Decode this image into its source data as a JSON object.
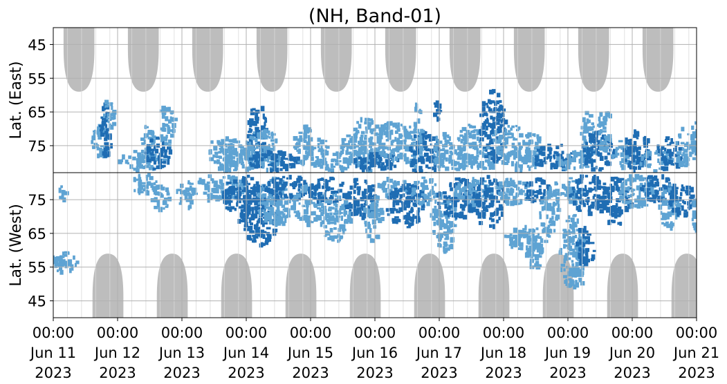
{
  "chart_data": {
    "type": "heatmap",
    "title": "(NH, Band-01)",
    "panels": [
      {
        "name": "east",
        "ylabel": "Lat. (East)",
        "yticks": [
          "45",
          "55",
          "65",
          "75"
        ],
        "ylim": [
          40,
          83
        ]
      },
      {
        "name": "west",
        "ylabel": "Lat. (West)",
        "yticks": [
          "75",
          "65",
          "55",
          "45"
        ],
        "ylim": [
          83,
          40
        ]
      }
    ],
    "xticks": [
      {
        "time": "00:00",
        "date": "Jun 11",
        "year": "2023"
      },
      {
        "time": "00:00",
        "date": "Jun 12",
        "year": "2023"
      },
      {
        "time": "00:00",
        "date": "Jun 13",
        "year": "2023"
      },
      {
        "time": "00:00",
        "date": "Jun 14",
        "year": "2023"
      },
      {
        "time": "00:00",
        "date": "Jun 15",
        "year": "2023"
      },
      {
        "time": "00:00",
        "date": "Jun 16",
        "year": "2023"
      },
      {
        "time": "00:00",
        "date": "Jun 17",
        "year": "2023"
      },
      {
        "time": "00:00",
        "date": "Jun 18",
        "year": "2023"
      },
      {
        "time": "00:00",
        "date": "Jun 19",
        "year": "2023"
      },
      {
        "time": "00:00",
        "date": "Jun 20",
        "year": "2023"
      },
      {
        "time": "00:00",
        "date": "Jun 21",
        "year": "2023"
      }
    ],
    "xlim": [
      "2023-06-11 00:00",
      "2023-06-21 00:00"
    ],
    "grid": true,
    "colors": {
      "strong": "#1f6db3",
      "weak": "#5ea3d3",
      "daylight_mask": "#bdbdbd",
      "grid": "#b0b0b0"
    },
    "east_blobs": [
      {
        "t": 0.73,
        "lat": 73,
        "dt": 0.15,
        "dlat": 5,
        "level": "weak"
      },
      {
        "t": 0.8,
        "lat": 70,
        "dt": 0.1,
        "dlat": 8,
        "level": "strong"
      },
      {
        "t": 0.85,
        "lat": 65,
        "dt": 0.08,
        "dlat": 5,
        "level": "weak"
      },
      {
        "t": 1.35,
        "lat": 79,
        "dt": 0.35,
        "dlat": 3,
        "level": "weak"
      },
      {
        "t": 1.45,
        "lat": 74,
        "dt": 0.1,
        "dlat": 6,
        "level": "weak"
      },
      {
        "t": 1.6,
        "lat": 77,
        "dt": 0.2,
        "dlat": 5,
        "level": "strong"
      },
      {
        "t": 1.75,
        "lat": 68,
        "dt": 0.12,
        "dlat": 7,
        "level": "weak"
      },
      {
        "t": 2.65,
        "lat": 77,
        "dt": 0.3,
        "dlat": 5,
        "level": "weak"
      },
      {
        "t": 2.85,
        "lat": 79,
        "dt": 0.35,
        "dlat": 3,
        "level": "weak"
      },
      {
        "t": 3.15,
        "lat": 71,
        "dt": 0.15,
        "dlat": 9,
        "level": "strong"
      },
      {
        "t": 3.25,
        "lat": 76,
        "dt": 0.3,
        "dlat": 6,
        "level": "weak"
      },
      {
        "t": 3.4,
        "lat": 79,
        "dt": 0.4,
        "dlat": 3,
        "level": "strong"
      },
      {
        "t": 3.85,
        "lat": 74,
        "dt": 0.15,
        "dlat": 6,
        "level": "weak"
      },
      {
        "t": 4.05,
        "lat": 76,
        "dt": 0.2,
        "dlat": 4,
        "level": "weak"
      },
      {
        "t": 4.35,
        "lat": 79,
        "dt": 0.3,
        "dlat": 3,
        "level": "weak"
      },
      {
        "t": 4.6,
        "lat": 75,
        "dt": 0.15,
        "dlat": 5,
        "level": "weak"
      },
      {
        "t": 4.85,
        "lat": 74,
        "dt": 0.25,
        "dlat": 8,
        "level": "weak"
      },
      {
        "t": 5.0,
        "lat": 79,
        "dt": 0.35,
        "dlat": 3,
        "level": "strong"
      },
      {
        "t": 5.25,
        "lat": 73,
        "dt": 0.25,
        "dlat": 6,
        "level": "weak"
      },
      {
        "t": 5.55,
        "lat": 75,
        "dt": 0.2,
        "dlat": 6,
        "level": "weak"
      },
      {
        "t": 5.75,
        "lat": 77,
        "dt": 0.25,
        "dlat": 7,
        "level": "strong"
      },
      {
        "t": 5.65,
        "lat": 68,
        "dt": 0.06,
        "dlat": 7,
        "level": "weak"
      },
      {
        "t": 5.95,
        "lat": 64,
        "dt": 0.05,
        "dlat": 4,
        "level": "strong"
      },
      {
        "t": 6.05,
        "lat": 76,
        "dt": 0.15,
        "dlat": 6,
        "level": "weak"
      },
      {
        "t": 6.25,
        "lat": 79,
        "dt": 0.35,
        "dlat": 3,
        "level": "weak"
      },
      {
        "t": 6.45,
        "lat": 74,
        "dt": 0.18,
        "dlat": 6,
        "level": "weak"
      },
      {
        "t": 6.7,
        "lat": 77,
        "dt": 0.18,
        "dlat": 5,
        "level": "weak"
      },
      {
        "t": 6.8,
        "lat": 69,
        "dt": 0.2,
        "dlat": 11,
        "level": "strong"
      },
      {
        "t": 7.05,
        "lat": 73,
        "dt": 0.25,
        "dlat": 5,
        "level": "weak"
      },
      {
        "t": 7.25,
        "lat": 79,
        "dt": 0.3,
        "dlat": 3,
        "level": "weak"
      },
      {
        "t": 7.4,
        "lat": 75,
        "dt": 0.2,
        "dlat": 5,
        "level": "weak"
      },
      {
        "t": 7.75,
        "lat": 78,
        "dt": 0.3,
        "dlat": 4,
        "level": "strong"
      },
      {
        "t": 8.05,
        "lat": 79,
        "dt": 0.3,
        "dlat": 3,
        "level": "weak"
      },
      {
        "t": 8.3,
        "lat": 71,
        "dt": 0.12,
        "dlat": 7,
        "level": "weak"
      },
      {
        "t": 8.45,
        "lat": 76,
        "dt": 0.25,
        "dlat": 6,
        "level": "strong"
      },
      {
        "t": 8.55,
        "lat": 70,
        "dt": 0.12,
        "dlat": 6,
        "level": "weak"
      },
      {
        "t": 8.85,
        "lat": 77,
        "dt": 0.2,
        "dlat": 4,
        "level": "weak"
      },
      {
        "t": 9.05,
        "lat": 76,
        "dt": 0.2,
        "dlat": 6,
        "level": "strong"
      },
      {
        "t": 9.35,
        "lat": 79,
        "dt": 0.25,
        "dlat": 3,
        "level": "weak"
      },
      {
        "t": 9.55,
        "lat": 77,
        "dt": 0.2,
        "dlat": 5,
        "level": "strong"
      },
      {
        "t": 9.8,
        "lat": 75,
        "dt": 0.15,
        "dlat": 6,
        "level": "weak"
      },
      {
        "t": 9.95,
        "lat": 73,
        "dt": 0.06,
        "dlat": 6,
        "level": "weak"
      }
    ],
    "west_blobs": [
      {
        "t": 0.1,
        "lat": 57,
        "dt": 0.25,
        "dlat": 3,
        "level": "weak"
      },
      {
        "t": 0.12,
        "lat": 77,
        "dt": 0.06,
        "dlat": 3,
        "level": "weak"
      },
      {
        "t": 1.4,
        "lat": 80,
        "dt": 0.2,
        "dlat": 3,
        "level": "weak"
      },
      {
        "t": 1.65,
        "lat": 76,
        "dt": 0.15,
        "dlat": 4,
        "level": "weak"
      },
      {
        "t": 2.05,
        "lat": 77,
        "dt": 0.15,
        "dlat": 4,
        "level": "weak"
      },
      {
        "t": 2.55,
        "lat": 79,
        "dt": 0.4,
        "dlat": 4,
        "level": "weak"
      },
      {
        "t": 2.95,
        "lat": 76,
        "dt": 0.35,
        "dlat": 7,
        "level": "strong"
      },
      {
        "t": 3.2,
        "lat": 71,
        "dt": 0.3,
        "dlat": 9,
        "level": "strong"
      },
      {
        "t": 3.45,
        "lat": 75,
        "dt": 0.3,
        "dlat": 7,
        "level": "weak"
      },
      {
        "t": 3.6,
        "lat": 79,
        "dt": 0.35,
        "dlat": 4,
        "level": "strong"
      },
      {
        "t": 3.95,
        "lat": 74,
        "dt": 0.25,
        "dlat": 6,
        "level": "weak"
      },
      {
        "t": 4.25,
        "lat": 78,
        "dt": 0.3,
        "dlat": 4,
        "level": "strong"
      },
      {
        "t": 4.35,
        "lat": 70,
        "dt": 0.25,
        "dlat": 7,
        "level": "weak"
      },
      {
        "t": 4.75,
        "lat": 76,
        "dt": 0.25,
        "dlat": 6,
        "level": "strong"
      },
      {
        "t": 4.95,
        "lat": 70,
        "dt": 0.15,
        "dlat": 7,
        "level": "weak"
      },
      {
        "t": 5.25,
        "lat": 79,
        "dt": 0.25,
        "dlat": 3,
        "level": "weak"
      },
      {
        "t": 5.45,
        "lat": 74,
        "dt": 0.3,
        "dlat": 7,
        "level": "strong"
      },
      {
        "t": 5.75,
        "lat": 78,
        "dt": 0.2,
        "dlat": 4,
        "level": "weak"
      },
      {
        "t": 6.05,
        "lat": 69,
        "dt": 0.2,
        "dlat": 9,
        "level": "weak"
      },
      {
        "t": 6.25,
        "lat": 76,
        "dt": 0.3,
        "dlat": 6,
        "level": "strong"
      },
      {
        "t": 6.5,
        "lat": 78,
        "dt": 0.3,
        "dlat": 4,
        "level": "weak"
      },
      {
        "t": 6.75,
        "lat": 75,
        "dt": 0.25,
        "dlat": 8,
        "level": "strong"
      },
      {
        "t": 7.15,
        "lat": 78,
        "dt": 0.3,
        "dlat": 4,
        "level": "weak"
      },
      {
        "t": 7.35,
        "lat": 64,
        "dt": 0.35,
        "dlat": 4,
        "level": "weak"
      },
      {
        "t": 7.45,
        "lat": 60,
        "dt": 0.12,
        "dlat": 6,
        "level": "weak"
      },
      {
        "t": 7.5,
        "lat": 78,
        "dt": 0.2,
        "dlat": 4,
        "level": "strong"
      },
      {
        "t": 7.7,
        "lat": 72,
        "dt": 0.15,
        "dlat": 7,
        "level": "weak"
      },
      {
        "t": 7.95,
        "lat": 78,
        "dt": 0.3,
        "dlat": 4,
        "level": "weak"
      },
      {
        "t": 8.05,
        "lat": 60,
        "dt": 0.2,
        "dlat": 11,
        "level": "weak"
      },
      {
        "t": 8.15,
        "lat": 56,
        "dt": 0.06,
        "dlat": 8,
        "level": "weak"
      },
      {
        "t": 8.25,
        "lat": 62,
        "dt": 0.15,
        "dlat": 6,
        "level": "strong"
      },
      {
        "t": 8.3,
        "lat": 77,
        "dt": 0.3,
        "dlat": 6,
        "level": "strong"
      },
      {
        "t": 8.7,
        "lat": 75,
        "dt": 0.3,
        "dlat": 7,
        "level": "strong"
      },
      {
        "t": 9.05,
        "lat": 78,
        "dt": 0.3,
        "dlat": 5,
        "level": "weak"
      },
      {
        "t": 9.35,
        "lat": 79,
        "dt": 0.25,
        "dlat": 4,
        "level": "strong"
      },
      {
        "t": 9.55,
        "lat": 73,
        "dt": 0.15,
        "dlat": 7,
        "level": "weak"
      },
      {
        "t": 9.75,
        "lat": 76,
        "dt": 0.2,
        "dlat": 5,
        "level": "strong"
      },
      {
        "t": 9.95,
        "lat": 72,
        "dt": 0.06,
        "dlat": 6,
        "level": "weak"
      }
    ],
    "east_mask_centers": [
      0.4,
      1.4,
      2.4,
      3.4,
      4.4,
      5.4,
      6.4,
      7.4,
      8.4,
      9.4
    ],
    "west_mask_centers": [
      0.85,
      1.85,
      2.85,
      3.85,
      4.85,
      5.85,
      6.85,
      7.85,
      8.85,
      9.85
    ]
  }
}
